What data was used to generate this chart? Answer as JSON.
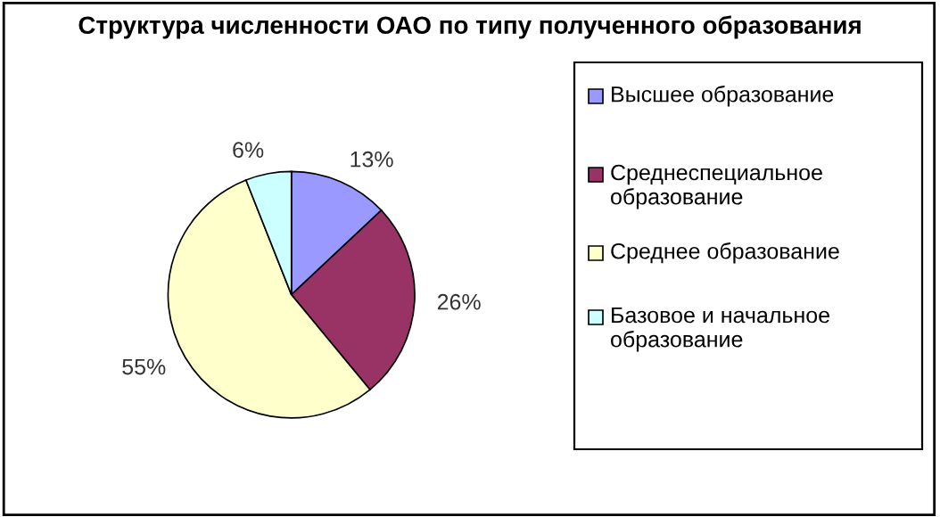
{
  "chart_data": {
    "type": "pie",
    "title": "Структура численности ОАО по типу полученного образования",
    "categories": [
      "Высшее образование",
      "Среднеспециальное образование",
      "Среднее образование",
      "Базовое и начальное образование"
    ],
    "values": [
      13,
      26,
      55,
      6
    ],
    "colors": [
      "#9999ff",
      "#993366",
      "#ffffcc",
      "#ccffff"
    ],
    "value_labels": [
      "13%",
      "26%",
      "55%",
      "6%"
    ],
    "legend": "right"
  }
}
